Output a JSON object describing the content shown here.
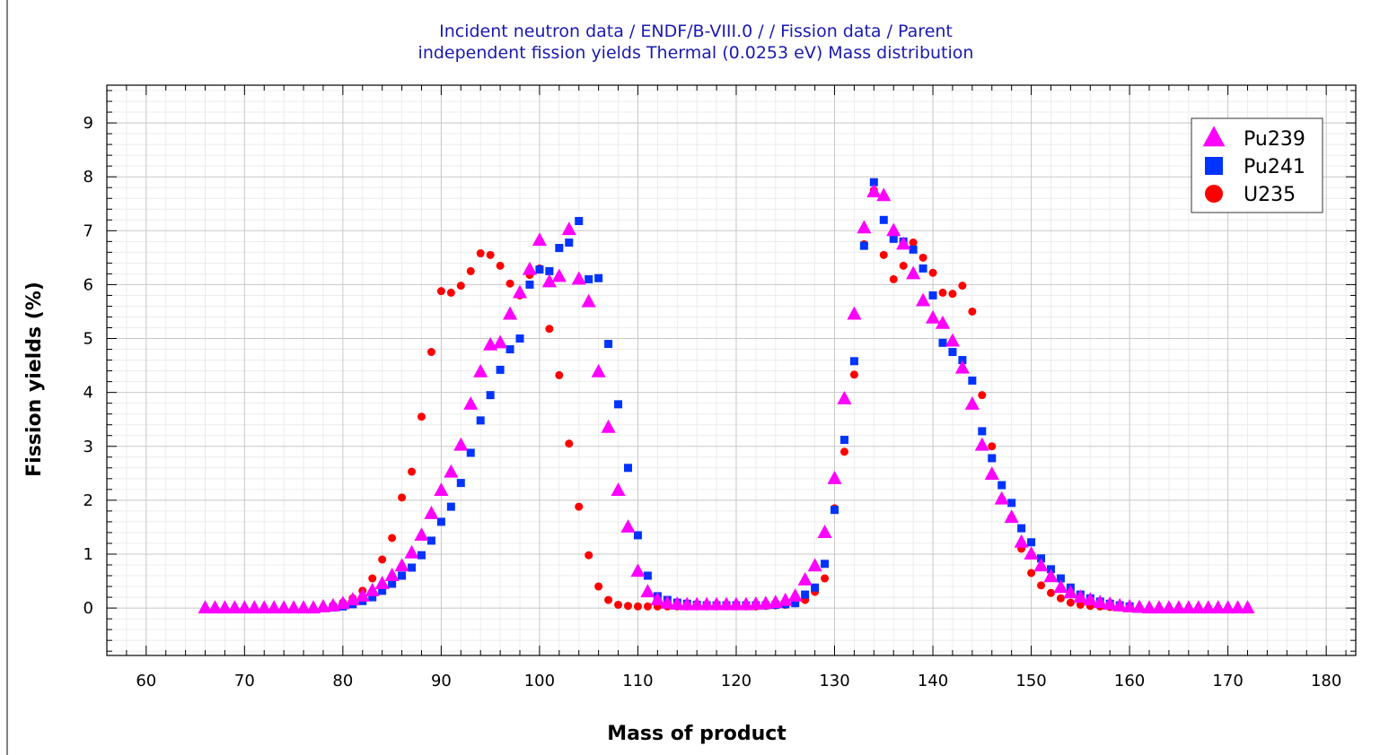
{
  "chart_data": {
    "type": "scatter",
    "title_lines": [
      "Incident neutron data / ENDF/B-VIII.0 / / Fission data / Parent",
      "independent fission yields Thermal (0.0253 eV) Mass distribution"
    ],
    "xlabel": "Mass of product",
    "ylabel": "Fission yields (%)",
    "xlim": [
      56,
      183
    ],
    "ylim": [
      -0.88,
      9.7
    ],
    "xticks": [
      60,
      70,
      80,
      90,
      100,
      110,
      120,
      130,
      140,
      150,
      160,
      170,
      180
    ],
    "yticks": [
      0,
      1,
      2,
      3,
      4,
      5,
      6,
      7,
      8,
      9
    ],
    "grid": true,
    "legend_position": "top-right",
    "series": [
      {
        "name": "Pu239",
        "marker": "triangle",
        "color": "#ff00ff",
        "x": [
          66,
          67,
          68,
          69,
          70,
          71,
          72,
          73,
          74,
          75,
          76,
          77,
          78,
          79,
          80,
          81,
          82,
          83,
          84,
          85,
          86,
          87,
          88,
          89,
          90,
          91,
          92,
          93,
          94,
          95,
          96,
          97,
          98,
          99,
          100,
          101,
          102,
          103,
          104,
          105,
          106,
          107,
          108,
          109,
          110,
          111,
          112,
          113,
          114,
          115,
          116,
          117,
          118,
          119,
          120,
          121,
          122,
          123,
          124,
          125,
          126,
          127,
          128,
          129,
          130,
          131,
          132,
          133,
          134,
          135,
          136,
          137,
          138,
          139,
          140,
          141,
          142,
          143,
          144,
          145,
          146,
          147,
          148,
          149,
          150,
          151,
          152,
          153,
          154,
          155,
          156,
          157,
          158,
          159,
          160,
          161,
          162,
          163,
          164,
          165,
          166,
          167,
          168,
          169,
          170,
          171,
          172
        ],
        "y": [
          0,
          0,
          0,
          0,
          0,
          0,
          0,
          0,
          0,
          0,
          0,
          0,
          0.02,
          0.04,
          0.08,
          0.15,
          0.22,
          0.32,
          0.45,
          0.6,
          0.78,
          1.02,
          1.35,
          1.75,
          2.18,
          2.52,
          3.02,
          3.78,
          4.38,
          4.88,
          4.92,
          5.45,
          5.85,
          6.28,
          6.82,
          6.05,
          6.15,
          7.02,
          6.1,
          5.68,
          4.38,
          3.35,
          2.18,
          1.5,
          0.68,
          0.3,
          0.15,
          0.09,
          0.07,
          0.06,
          0.06,
          0.06,
          0.06,
          0.06,
          0.06,
          0.06,
          0.07,
          0.08,
          0.1,
          0.14,
          0.22,
          0.52,
          0.78,
          1.4,
          2.4,
          3.88,
          5.45,
          7.05,
          7.72,
          7.65,
          7.0,
          6.75,
          6.2,
          5.7,
          5.38,
          5.28,
          4.95,
          4.45,
          3.78,
          3.02,
          2.48,
          2.02,
          1.68,
          1.22,
          1.0,
          0.78,
          0.58,
          0.38,
          0.28,
          0.2,
          0.15,
          0.1,
          0.07,
          0.04,
          0.02,
          0.01,
          0,
          0,
          0,
          0,
          0,
          0,
          0,
          0,
          0,
          0,
          0
        ]
      },
      {
        "name": "Pu241",
        "marker": "square",
        "color": "#0033ff",
        "x": [
          79,
          80,
          81,
          82,
          83,
          84,
          85,
          86,
          87,
          88,
          89,
          90,
          91,
          92,
          93,
          94,
          95,
          96,
          97,
          98,
          99,
          100,
          101,
          102,
          103,
          104,
          105,
          106,
          107,
          108,
          109,
          110,
          111,
          112,
          113,
          114,
          115,
          116,
          117,
          118,
          119,
          120,
          121,
          122,
          123,
          124,
          125,
          126,
          127,
          128,
          129,
          130,
          131,
          132,
          133,
          134,
          135,
          136,
          137,
          138,
          139,
          140,
          141,
          142,
          143,
          144,
          145,
          146,
          147,
          148,
          149,
          150,
          151,
          152,
          153,
          154,
          155,
          156,
          157,
          158,
          159,
          160
        ],
        "y": [
          0.01,
          0.03,
          0.07,
          0.13,
          0.2,
          0.32,
          0.45,
          0.6,
          0.75,
          0.98,
          1.25,
          1.6,
          1.88,
          2.32,
          2.88,
          3.48,
          3.95,
          4.42,
          4.8,
          5.0,
          6.0,
          6.28,
          6.25,
          6.68,
          6.78,
          7.18,
          6.1,
          6.12,
          4.9,
          3.78,
          2.6,
          1.35,
          0.6,
          0.22,
          0.15,
          0.1,
          0.08,
          0.06,
          0.05,
          0.05,
          0.05,
          0.05,
          0.05,
          0.05,
          0.05,
          0.06,
          0.07,
          0.09,
          0.25,
          0.38,
          0.82,
          1.82,
          3.12,
          4.58,
          6.72,
          7.9,
          7.2,
          6.85,
          6.8,
          6.65,
          6.3,
          5.8,
          4.92,
          4.75,
          4.6,
          4.22,
          3.28,
          2.78,
          2.28,
          1.95,
          1.48,
          1.22,
          0.92,
          0.72,
          0.55,
          0.38,
          0.25,
          0.18,
          0.12,
          0.08,
          0.05,
          0.03
        ]
      },
      {
        "name": "U235",
        "marker": "circle",
        "color": "#ff0000",
        "x": [
          79,
          80,
          81,
          82,
          83,
          84,
          85,
          86,
          87,
          88,
          89,
          90,
          91,
          92,
          93,
          94,
          95,
          96,
          97,
          98,
          99,
          100,
          101,
          102,
          103,
          104,
          105,
          106,
          107,
          108,
          109,
          110,
          111,
          112,
          113,
          114,
          115,
          116,
          117,
          118,
          119,
          120,
          121,
          122,
          123,
          124,
          125,
          126,
          127,
          128,
          129,
          130,
          131,
          132,
          133,
          134,
          135,
          136,
          137,
          138,
          139,
          140,
          141,
          142,
          143,
          144,
          145,
          146,
          147,
          148,
          149,
          150,
          151,
          152,
          153,
          154,
          155,
          156,
          157,
          158,
          159,
          160
        ],
        "y": [
          0.05,
          0.1,
          0.18,
          0.32,
          0.55,
          0.9,
          1.3,
          2.05,
          2.53,
          3.55,
          4.75,
          5.88,
          5.85,
          5.98,
          6.25,
          6.58,
          6.55,
          6.35,
          6.02,
          5.8,
          6.18,
          6.3,
          5.18,
          4.32,
          3.05,
          1.88,
          0.98,
          0.4,
          0.15,
          0.06,
          0.04,
          0.03,
          0.03,
          0.03,
          0.03,
          0.03,
          0.03,
          0.03,
          0.03,
          0.03,
          0.03,
          0.03,
          0.03,
          0.03,
          0.04,
          0.05,
          0.06,
          0.09,
          0.15,
          0.3,
          0.55,
          1.85,
          2.9,
          4.33,
          6.75,
          7.75,
          6.55,
          6.1,
          6.35,
          6.78,
          6.5,
          6.22,
          5.85,
          5.83,
          5.98,
          5.5,
          3.95,
          3.0,
          2.02,
          1.68,
          1.1,
          0.65,
          0.42,
          0.28,
          0.18,
          0.1,
          0.06,
          0.04,
          0.03,
          0.02,
          0.01,
          0.01
        ]
      }
    ]
  }
}
